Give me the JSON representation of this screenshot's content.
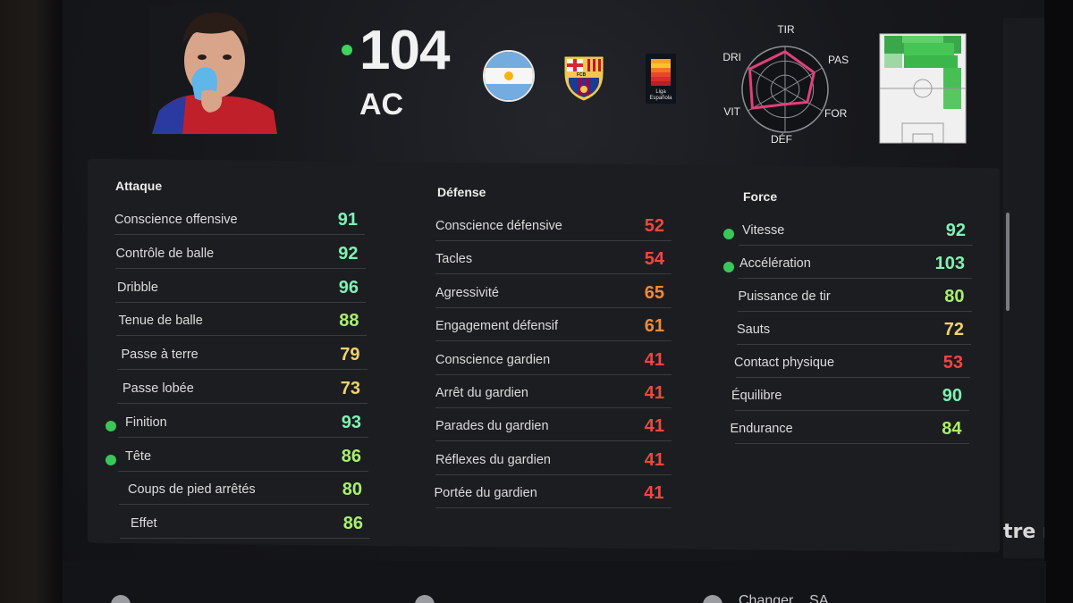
{
  "header": {
    "overall_rating": "104",
    "position": "AC",
    "nationality_icon": "argentina-flag-icon",
    "club_icon": "fc-barcelona-crest-icon",
    "club_crest_text": "FCB",
    "league_icon": "liga-espanola-icon",
    "league_text_1": "Liga",
    "league_text_2": "Española",
    "radar": {
      "labels": {
        "top": "TIR",
        "upper_right": "PAS",
        "lower_right": "FOR",
        "bottom": "DÉF",
        "lower_left": "VIT",
        "upper_left": "DRI"
      },
      "values": {
        "TIR": 0.88,
        "PAS": 0.78,
        "FOR": 0.6,
        "DÉF": 0.35,
        "VIT": 0.88,
        "DRI": 0.95
      },
      "colors": {
        "line": "#e0407a"
      }
    },
    "pitch_icon": "position-heatmap-icon"
  },
  "categories": {
    "attaque": {
      "title": "Attaque",
      "stats": [
        {
          "label": "Conscience offensive",
          "value": "91",
          "tone": "green-hi",
          "dot": false
        },
        {
          "label": "Contrôle de balle",
          "value": "92",
          "tone": "green-hi",
          "dot": false
        },
        {
          "label": "Dribble",
          "value": "96",
          "tone": "green-hi",
          "dot": false
        },
        {
          "label": "Tenue de balle",
          "value": "88",
          "tone": "green",
          "dot": false
        },
        {
          "label": "Passe à terre",
          "value": "79",
          "tone": "yellow",
          "dot": false
        },
        {
          "label": "Passe lobée",
          "value": "73",
          "tone": "yellow",
          "dot": false
        },
        {
          "label": "Finition",
          "value": "93",
          "tone": "green-hi",
          "dot": true
        },
        {
          "label": "Tête",
          "value": "86",
          "tone": "green",
          "dot": true
        },
        {
          "label": "Coups de pied arrêtés",
          "value": "80",
          "tone": "green",
          "dot": false
        },
        {
          "label": "Effet",
          "value": "86",
          "tone": "green",
          "dot": false
        }
      ]
    },
    "defense": {
      "title": "Défense",
      "stats": [
        {
          "label": "Conscience défensive",
          "value": "52",
          "tone": "red",
          "dot": false
        },
        {
          "label": "Tacles",
          "value": "54",
          "tone": "red",
          "dot": false
        },
        {
          "label": "Agressivité",
          "value": "65",
          "tone": "orange",
          "dot": false
        },
        {
          "label": "Engagement défensif",
          "value": "61",
          "tone": "orange",
          "dot": false
        },
        {
          "label": "Conscience gardien",
          "value": "41",
          "tone": "red",
          "dot": false
        },
        {
          "label": "Arrêt du gardien",
          "value": "41",
          "tone": "red",
          "dot": false
        },
        {
          "label": "Parades du gardien",
          "value": "41",
          "tone": "red",
          "dot": false
        },
        {
          "label": "Réflexes du gardien",
          "value": "41",
          "tone": "red",
          "dot": false
        },
        {
          "label": "Portée du gardien",
          "value": "41",
          "tone": "red",
          "dot": false
        }
      ]
    },
    "force": {
      "title": "Force",
      "stats": [
        {
          "label": "Vitesse",
          "value": "92",
          "tone": "green-hi",
          "dot": true
        },
        {
          "label": "Accélération",
          "value": "103",
          "tone": "green-hi",
          "dot": true
        },
        {
          "label": "Puissance de tir",
          "value": "80",
          "tone": "green",
          "dot": false
        },
        {
          "label": "Sauts",
          "value": "72",
          "tone": "yellow",
          "dot": false
        },
        {
          "label": "Contact physique",
          "value": "53",
          "tone": "red",
          "dot": false
        },
        {
          "label": "Équilibre",
          "value": "90",
          "tone": "green-hi",
          "dot": false
        },
        {
          "label": "Endurance",
          "value": "84",
          "tone": "green",
          "dot": false
        }
      ]
    }
  },
  "side": {
    "partial_text": "tre rapic"
  },
  "footer": {
    "partial_text": "Changer ...SA"
  },
  "colors": {
    "indicator_dot": "#39c75a",
    "green_hi": "#7ff2b2",
    "green": "#a8ef6f",
    "yellow": "#f1d26a",
    "orange": "#f08a3a",
    "red": "#f0473e"
  }
}
